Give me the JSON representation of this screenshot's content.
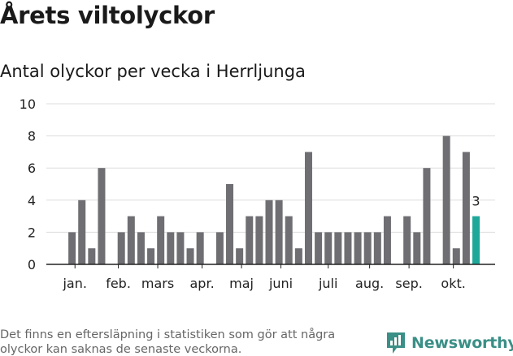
{
  "header": {
    "title": "Årets viltolyckor",
    "subtitle": "Antal olyckor per vecka i Herrljunga"
  },
  "footer": {
    "note": "Det finns en eftersläpning i statistiken som gör att några olyckor kan saknas de senaste veckorna.",
    "brand": "Newsworthy"
  },
  "colors": {
    "bar": "#6f6e72",
    "highlight": "#1ea89a",
    "grid": "#dddddd",
    "axis": "#222222",
    "brand": "#3a8f86"
  },
  "chart_data": {
    "type": "bar",
    "x": [
      1,
      2,
      3,
      4,
      5,
      6,
      7,
      8,
      9,
      10,
      11,
      12,
      13,
      14,
      15,
      16,
      17,
      18,
      19,
      20,
      21,
      22,
      23,
      24,
      25,
      26,
      27,
      28,
      29,
      30,
      31,
      32,
      33,
      34,
      35,
      36,
      37,
      38,
      39,
      40,
      41,
      42
    ],
    "values": [
      2,
      4,
      1,
      6,
      0,
      2,
      3,
      2,
      1,
      3,
      2,
      2,
      1,
      2,
      0,
      2,
      5,
      1,
      3,
      3,
      4,
      4,
      3,
      1,
      7,
      2,
      2,
      2,
      2,
      2,
      2,
      2,
      3,
      0,
      3,
      2,
      6,
      0,
      8,
      1,
      7,
      3
    ],
    "highlight_index": 41,
    "highlight_label": "3",
    "ylim": [
      0,
      10
    ],
    "yticks": [
      "0",
      "2",
      "4",
      "6",
      "8",
      "10"
    ],
    "month_ticks": [
      {
        "label": "jan.",
        "x": 1.3
      },
      {
        "label": "feb.",
        "x": 5.7
      },
      {
        "label": "mars",
        "x": 9.7
      },
      {
        "label": "apr.",
        "x": 14.2
      },
      {
        "label": "maj",
        "x": 18.2
      },
      {
        "label": "juni",
        "x": 22.2
      },
      {
        "label": "juli",
        "x": 27.0
      },
      {
        "label": "aug.",
        "x": 31.2
      },
      {
        "label": "sep.",
        "x": 35.2
      },
      {
        "label": "okt.",
        "x": 39.7
      }
    ],
    "grid": true
  }
}
